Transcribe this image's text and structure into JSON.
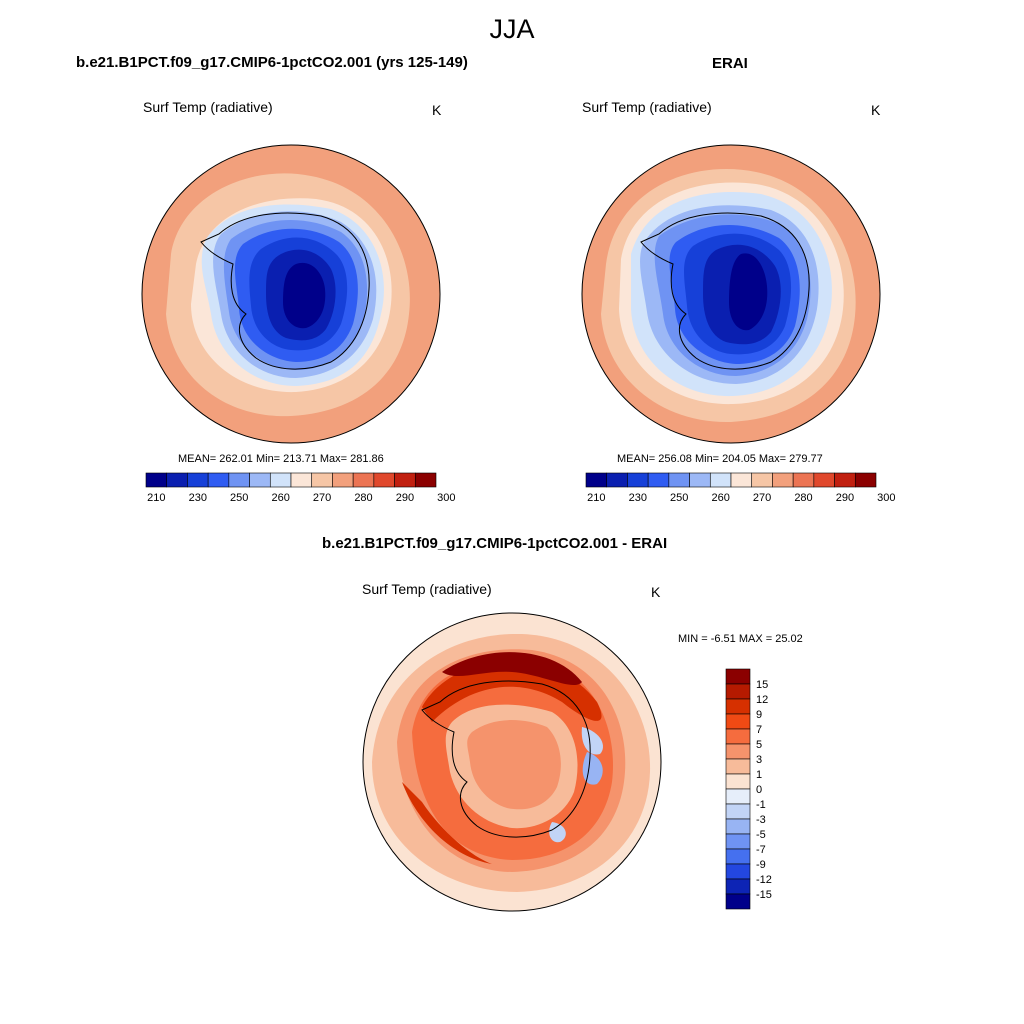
{
  "figure": {
    "season": "JJA",
    "panels": [
      {
        "title": "b.e21.B1PCT.f09_g17.CMIP6-1pctCO2.001 (yrs 125-149)",
        "variable": "Surf Temp (radiative)",
        "units": "K",
        "stats": "MEAN= 262.01  Min= 213.71  Max= 281.86",
        "mean": 262.01,
        "min": 213.71,
        "max": 281.86
      },
      {
        "title": "ERAI",
        "variable": "Surf Temp (radiative)",
        "units": "K",
        "stats": "MEAN= 256.08  Min= 204.05  Max= 279.77",
        "mean": 256.08,
        "min": 204.05,
        "max": 279.77
      },
      {
        "title": "b.e21.B1PCT.f09_g17.CMIP6-1pctCO2.001 - ERAI",
        "variable": "Surf Temp (radiative)",
        "units": "K",
        "stats": "MIN =  -6.51 MAX =  25.02",
        "min": -6.51,
        "max": 25.02
      }
    ],
    "colorbar_abs": {
      "labels": [
        "210",
        "230",
        "250",
        "260",
        "270",
        "280",
        "290",
        "300"
      ],
      "colors": [
        "#00008a",
        "#0a1fb0",
        "#1640d8",
        "#2f5cf2",
        "#6f93f3",
        "#9cb8f6",
        "#d1e3fa",
        "#fbe6d8",
        "#f6c6a6",
        "#f2a07c",
        "#ec7453",
        "#e0482c",
        "#c12010",
        "#8b0000"
      ]
    },
    "colorbar_diff": {
      "labels": [
        "15",
        "12",
        "9",
        "7",
        "5",
        "3",
        "1",
        "0",
        "-1",
        "-3",
        "-5",
        "-7",
        "-9",
        "-12",
        "-15"
      ],
      "colors": [
        "#8b0000",
        "#b51a00",
        "#d63000",
        "#f04a14",
        "#f56c3e",
        "#f5936c",
        "#f7bb9a",
        "#fbe3d2",
        "#e6eefa",
        "#c2d4f6",
        "#98b4f3",
        "#6f93f3",
        "#4570ef",
        "#2347e0",
        "#0d24b5",
        "#00008a"
      ]
    }
  }
}
